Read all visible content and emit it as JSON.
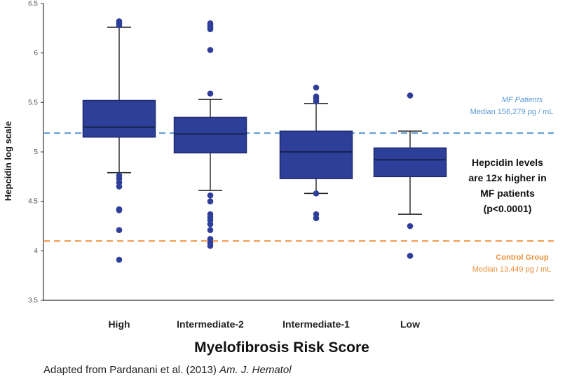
{
  "chart_data": {
    "type": "box",
    "xlabel": "Myelofibrosis Risk Score",
    "ylabel": "Hepcidin  log scale",
    "ylim": [
      3.5,
      6.5
    ],
    "yticks": [
      "3.5",
      "4",
      "4.5",
      "5",
      "5.5",
      "6",
      "6.5"
    ],
    "categories": [
      "High",
      "Intermediate-2",
      "Intermediate-1",
      "Low"
    ],
    "boxes": [
      {
        "category": "High",
        "whisker_low": 4.79,
        "q1": 5.15,
        "median": 5.25,
        "q3": 5.52,
        "whisker_high": 6.26,
        "outliers": [
          6.32,
          6.3,
          6.28,
          4.76,
          4.73,
          4.69,
          4.65,
          4.42,
          4.41,
          4.21,
          3.91
        ]
      },
      {
        "category": "Intermediate-2",
        "whisker_low": 4.61,
        "q1": 4.99,
        "median": 5.18,
        "q3": 5.35,
        "whisker_high": 5.53,
        "outliers": [
          6.3,
          6.28,
          6.26,
          6.24,
          6.03,
          5.59,
          4.56,
          4.5,
          4.37,
          4.34,
          4.31,
          4.27,
          4.21,
          4.12,
          4.08,
          4.05
        ]
      },
      {
        "category": "Intermediate-1",
        "whisker_low": 4.58,
        "q1": 4.73,
        "median": 5.0,
        "q3": 5.21,
        "whisker_high": 5.49,
        "outliers": [
          5.65,
          5.56,
          5.54,
          5.51,
          4.58,
          4.37,
          4.33
        ]
      },
      {
        "category": "Low",
        "whisker_low": 4.37,
        "q1": 4.75,
        "median": 4.92,
        "q3": 5.04,
        "whisker_high": 5.21,
        "outliers": [
          5.57,
          4.25,
          3.95
        ]
      }
    ],
    "reference_lines": [
      {
        "label": "MF Patients",
        "sublabel": "Median 156,279 pg / mL",
        "value": 5.19,
        "color": "#5b9bd5"
      },
      {
        "label": "Control Group",
        "sublabel": "Median 13,449 pg / mL",
        "value": 4.1,
        "color": "#ed8f3b"
      }
    ],
    "annotation": [
      "Hepcidin levels",
      "are 12x higher in",
      "MF patients",
      "(p<0.0001)"
    ],
    "colors": {
      "box_fill": "#2e3f99",
      "box_stroke": "#1e2a6e",
      "outlier": "#2e3f99"
    }
  },
  "caption": {
    "text": "Adapted from Pardanani et al. (2013) ",
    "journal": "Am. J. Hematol"
  }
}
